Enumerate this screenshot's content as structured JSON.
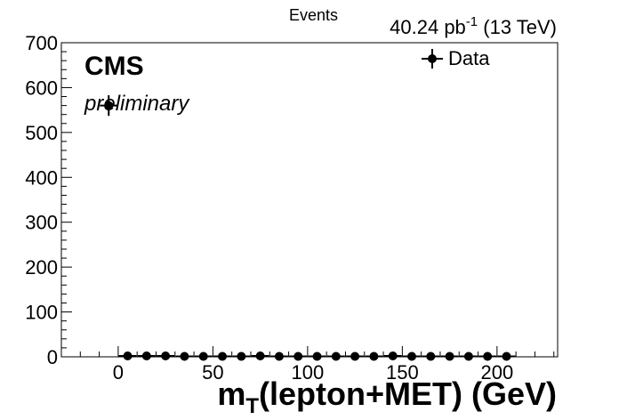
{
  "lumi_label": {
    "value": "40.24 pb",
    "exponent": "-1",
    "energy": " (13 TeV)"
  },
  "ylabel": "Events",
  "xlabel_main": "m",
  "xlabel_sub": "T",
  "xlabel_rest": "(lepton+MET) (GeV)",
  "cms_label": "CMS",
  "preliminary_label": "preliminary",
  "colors": {
    "marker": "#000000",
    "axis": "#000000",
    "background": "#ffffff"
  },
  "chart_data": {
    "type": "scatter",
    "title": "",
    "xlabel": "m_T(lepton+MET) (GeV)",
    "ylabel": "Events",
    "xlim": [
      -30,
      232
    ],
    "ylim": [
      0,
      700
    ],
    "x_ticks": [
      0,
      50,
      100,
      150,
      200
    ],
    "y_ticks": [
      0,
      100,
      200,
      300,
      400,
      500,
      600,
      700
    ],
    "grid": false,
    "legend_position": "top-right",
    "series": [
      {
        "name": "Data",
        "marker": "circle",
        "error_bars": true,
        "x": [
          -5,
          5,
          15,
          25,
          35,
          45,
          55,
          65,
          75,
          85,
          95,
          105,
          115,
          125,
          135,
          145,
          155,
          165,
          175,
          185,
          195,
          205
        ],
        "y": [
          560,
          2,
          2,
          2,
          1,
          1,
          1,
          1,
          2,
          1,
          1,
          1,
          1,
          1,
          1,
          2,
          1,
          1,
          1,
          1,
          1,
          1
        ],
        "y_err": [
          23,
          1.4,
          1.4,
          1.4,
          1,
          1,
          1,
          1,
          1.4,
          1,
          1,
          1,
          1,
          1,
          1,
          1.4,
          1,
          1,
          1,
          1,
          1,
          1
        ]
      }
    ]
  }
}
